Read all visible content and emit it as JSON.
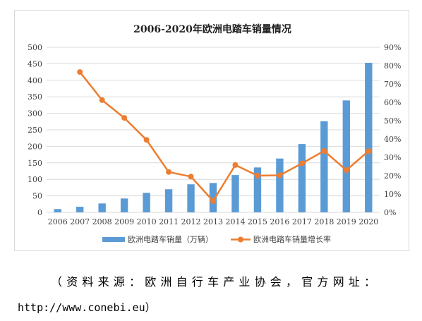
{
  "chart_data": {
    "type": "bar+line",
    "title": "2006-2020年欧洲电踏车销量情况",
    "categories": [
      "2006",
      "2007",
      "2008",
      "2009",
      "2010",
      "2011",
      "2012",
      "2013",
      "2014",
      "2015",
      "2016",
      "2017",
      "2018",
      "2019",
      "2020"
    ],
    "series": [
      {
        "name": "欧洲电踏车销量（万辆）",
        "type": "bar",
        "axis": "left",
        "color": "#5b9bd5",
        "values": [
          10,
          17,
          27,
          42,
          59,
          70,
          85,
          89,
          113,
          136,
          163,
          207,
          276,
          339,
          453
        ]
      },
      {
        "name": "欧洲电踏车销量增长率",
        "type": "line",
        "axis": "right",
        "color": "#ed7d31",
        "values": [
          null,
          76.5,
          61.2,
          51.5,
          39.5,
          22,
          19.5,
          6.2,
          25.8,
          20,
          20.2,
          26.7,
          33.5,
          23,
          33.4
        ]
      }
    ],
    "y_left": {
      "min": 0,
      "max": 500,
      "ticks": [
        "0",
        "50",
        "100",
        "150",
        "200",
        "250",
        "300",
        "350",
        "400",
        "450",
        "500"
      ]
    },
    "y_right": {
      "min": 0,
      "max": 90,
      "ticks": [
        "0%",
        "10%",
        "20%",
        "30%",
        "40%",
        "50%",
        "60%",
        "70%",
        "80%",
        "90%"
      ]
    },
    "grid": true,
    "legend_position": "bottom"
  },
  "source": {
    "line1": "（资料来源：欧洲自行车产业协会，官方网址：",
    "line2": "http://www.conebi.eu）"
  }
}
